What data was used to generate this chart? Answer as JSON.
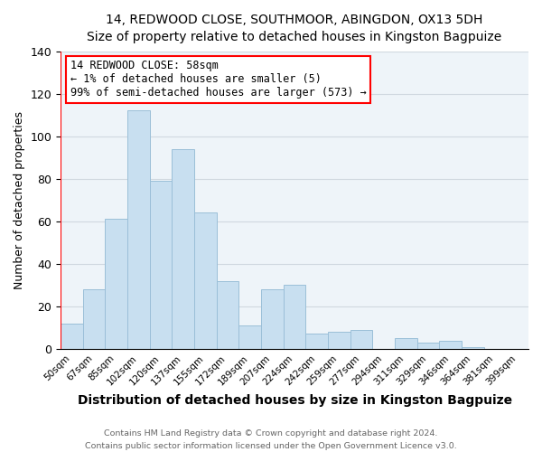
{
  "title": "14, REDWOOD CLOSE, SOUTHMOOR, ABINGDON, OX13 5DH",
  "subtitle": "Size of property relative to detached houses in Kingston Bagpuize",
  "xlabel": "Distribution of detached houses by size in Kingston Bagpuize",
  "ylabel": "Number of detached properties",
  "footer_line1": "Contains HM Land Registry data © Crown copyright and database right 2024.",
  "footer_line2": "Contains public sector information licensed under the Open Government Licence v3.0.",
  "categories": [
    "50sqm",
    "67sqm",
    "85sqm",
    "102sqm",
    "120sqm",
    "137sqm",
    "155sqm",
    "172sqm",
    "189sqm",
    "207sqm",
    "224sqm",
    "242sqm",
    "259sqm",
    "277sqm",
    "294sqm",
    "311sqm",
    "329sqm",
    "346sqm",
    "364sqm",
    "381sqm",
    "399sqm"
  ],
  "values": [
    12,
    28,
    61,
    112,
    79,
    94,
    64,
    32,
    11,
    28,
    30,
    7,
    8,
    9,
    0,
    5,
    3,
    4,
    1,
    0,
    0
  ],
  "bar_color": "#c8dff0",
  "bar_edge_color": "#9bbfd8",
  "ylim": [
    0,
    140
  ],
  "yticks": [
    0,
    20,
    40,
    60,
    80,
    100,
    120,
    140
  ],
  "annotation_title": "14 REDWOOD CLOSE: 58sqm",
  "annotation_line1": "← 1% of detached houses are smaller (5)",
  "annotation_line2": "99% of semi-detached houses are larger (573) →",
  "annotation_box_color": "white",
  "annotation_box_edge": "red",
  "background_color": "white",
  "grid_color": "#d0d8e0"
}
